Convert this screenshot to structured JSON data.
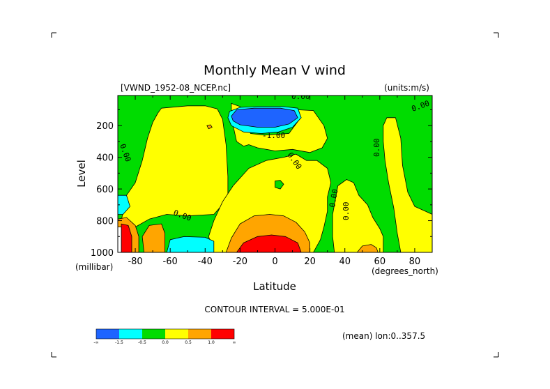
{
  "chart_data": {
    "type": "heatmap",
    "title": "Monthly Mean V wind",
    "dataset": "[VWND_1952-08_NCEP.nc]",
    "units": "(units:m/s)",
    "xlabel": "Latitude",
    "ylabel": "Level",
    "x_unit_label": "(degrees_north)",
    "y_unit_label": "(millibar)",
    "xlim": [
      -90,
      90
    ],
    "ylim": [
      1000,
      10
    ],
    "xticks": [
      "-80",
      "-60",
      "-40",
      "-20",
      "0",
      "20",
      "40",
      "60",
      "80"
    ],
    "xtick_values": [
      -80,
      -60,
      -40,
      -20,
      0,
      20,
      40,
      60,
      80
    ],
    "yticks": [
      "200",
      "400",
      "600",
      "800",
      "1000"
    ],
    "ytick_values": [
      200,
      400,
      600,
      800,
      1000
    ],
    "contour_interval_text": "CONTOUR INTERVAL = 5.000E-01",
    "mean_text": "(mean) lon:0..357.5",
    "contour_labels": [
      "0.00",
      "0.00",
      "0.00",
      "0.00",
      "0.00",
      "0.00",
      "0.00",
      "0.00",
      "-1.00"
    ],
    "colorbar": {
      "colors": [
        "#1e64ff",
        "#00ffff",
        "#00dc00",
        "#ffff00",
        "#ffa500",
        "#ff0000"
      ],
      "labels": [
        "-∞",
        "-1.5",
        "-0.5",
        "0.0",
        "0.5",
        "1.0",
        "∞"
      ]
    },
    "field": {
      "background_color": "#00dc00",
      "regions": [
        {
          "name": "yellow-left",
          "color": "#ffff00",
          "pts": [
            [
              -88,
              800
            ],
            [
              -85,
              640
            ],
            [
              -80,
              560
            ],
            [
              -76,
              420
            ],
            [
              -73,
              280
            ],
            [
              -70,
              180
            ],
            [
              -67,
              120
            ],
            [
              -65,
              90
            ],
            [
              -50,
              75
            ],
            [
              -40,
              75
            ],
            [
              -33,
              95
            ],
            [
              -30,
              160
            ],
            [
              -28,
              320
            ],
            [
              -27,
              520
            ],
            [
              -27,
              660
            ],
            [
              -35,
              760
            ],
            [
              -50,
              770
            ],
            [
              -62,
              760
            ],
            [
              -72,
              790
            ],
            [
              -80,
              840
            ],
            [
              -86,
              840
            ]
          ]
        },
        {
          "name": "yellow-upper-mid",
          "color": "#ffff00",
          "pts": [
            [
              -25,
              60
            ],
            [
              -20,
              80
            ],
            [
              -18,
              160
            ],
            [
              -14,
              250
            ],
            [
              -6,
              260
            ],
            [
              8,
              250
            ],
            [
              14,
              160
            ],
            [
              13,
              100
            ],
            [
              22,
              105
            ],
            [
              28,
              200
            ],
            [
              30,
              280
            ],
            [
              27,
              340
            ],
            [
              20,
              370
            ],
            [
              10,
              350
            ],
            [
              0,
              360
            ],
            [
              -10,
              340
            ],
            [
              -15,
              320
            ],
            [
              -18,
              330
            ],
            [
              -22,
              300
            ],
            [
              -24,
              200
            ],
            [
              -25,
              120
            ]
          ]
        },
        {
          "name": "yellow-lower-mid",
          "color": "#ffff00",
          "pts": [
            [
              -30,
              680
            ],
            [
              -24,
              580
            ],
            [
              -15,
              470
            ],
            [
              -5,
              420
            ],
            [
              5,
              400
            ],
            [
              12,
              380
            ],
            [
              18,
              420
            ],
            [
              24,
              420
            ],
            [
              30,
              470
            ],
            [
              32,
              560
            ],
            [
              30,
              650
            ],
            [
              30,
              740
            ],
            [
              28,
              840
            ],
            [
              26,
              920
            ],
            [
              22,
              1000
            ],
            [
              -35,
              1000
            ],
            [
              -38,
              900
            ],
            [
              -35,
              800
            ]
          ]
        },
        {
          "name": "yellow-right-a",
          "color": "#ffff00",
          "pts": [
            [
              36,
              580
            ],
            [
              41,
              540
            ],
            [
              45,
              560
            ],
            [
              48,
              640
            ],
            [
              53,
              700
            ],
            [
              56,
              780
            ],
            [
              60,
              850
            ],
            [
              62,
              900
            ],
            [
              62,
              1000
            ],
            [
              34,
              1000
            ],
            [
              33,
              900
            ],
            [
              33,
              760
            ]
          ]
        },
        {
          "name": "yellow-right-b",
          "color": "#ffff00",
          "pts": [
            [
              64,
              150
            ],
            [
              69,
              150
            ],
            [
              72,
              280
            ],
            [
              73,
              450
            ],
            [
              76,
              620
            ],
            [
              80,
              710
            ],
            [
              86,
              740
            ],
            [
              90,
              760
            ],
            [
              90,
              1000
            ],
            [
              72,
              1000
            ],
            [
              70,
              880
            ],
            [
              68,
              720
            ],
            [
              65,
              560
            ],
            [
              63,
              420
            ],
            [
              62,
              300
            ],
            [
              62,
              200
            ]
          ]
        },
        {
          "name": "orange-bottom-mid",
          "color": "#ffa500",
          "pts": [
            [
              -28,
              1000
            ],
            [
              -25,
              910
            ],
            [
              -20,
              820
            ],
            [
              -12,
              770
            ],
            [
              -3,
              760
            ],
            [
              5,
              770
            ],
            [
              12,
              810
            ],
            [
              17,
              870
            ],
            [
              20,
              940
            ],
            [
              20,
              1000
            ]
          ]
        },
        {
          "name": "red-bottom-mid",
          "color": "#ff0000",
          "pts": [
            [
              -22,
              1000
            ],
            [
              -18,
              940
            ],
            [
              -10,
              900
            ],
            [
              -2,
              890
            ],
            [
              6,
              900
            ],
            [
              13,
              940
            ],
            [
              15,
              1000
            ]
          ]
        },
        {
          "name": "blue-upper-mid",
          "color": "#00ffff",
          "pts": [
            [
              -27,
              150
            ],
            [
              -26,
              110
            ],
            [
              -20,
              85
            ],
            [
              -10,
              80
            ],
            [
              5,
              80
            ],
            [
              13,
              90
            ],
            [
              15,
              150
            ],
            [
              10,
              210
            ],
            [
              2,
              240
            ],
            [
              -8,
              250
            ],
            [
              -18,
              240
            ],
            [
              -25,
              200
            ]
          ]
        },
        {
          "name": "deepblue-upper-mid",
          "color": "#1e64ff",
          "pts": [
            [
              -25,
              140
            ],
            [
              -22,
              100
            ],
            [
              -12,
              90
            ],
            [
              3,
              90
            ],
            [
              11,
              105
            ],
            [
              13,
              150
            ],
            [
              8,
              190
            ],
            [
              0,
              210
            ],
            [
              -10,
              210
            ],
            [
              -20,
              195
            ],
            [
              -24,
              170
            ]
          ]
        },
        {
          "name": "orange-left",
          "color": "#ffa500",
          "pts": [
            [
              -75,
              1000
            ],
            [
              -76,
              900
            ],
            [
              -72,
              830
            ],
            [
              -65,
              820
            ],
            [
              -63,
              880
            ],
            [
              -63,
              960
            ],
            [
              -63,
              1000
            ]
          ]
        },
        {
          "name": "cyan-left-bottom",
          "color": "#00ffff",
          "pts": [
            [
              -62,
              1000
            ],
            [
              -60,
              920
            ],
            [
              -52,
              900
            ],
            [
              -40,
              905
            ],
            [
              -35,
              930
            ],
            [
              -35,
              1000
            ]
          ]
        },
        {
          "name": "cyan-left-edge",
          "color": "#00ffff",
          "pts": [
            [
              -90,
              640
            ],
            [
              -85,
              640
            ],
            [
              -83,
              710
            ],
            [
              -87,
              760
            ],
            [
              -90,
              760
            ]
          ]
        },
        {
          "name": "orange-far-left",
          "color": "#ffa500",
          "pts": [
            [
              -90,
              790
            ],
            [
              -85,
              780
            ],
            [
              -80,
              830
            ],
            [
              -78,
              900
            ],
            [
              -78,
              1000
            ],
            [
              -90,
              1000
            ]
          ]
        },
        {
          "name": "red-far-left",
          "color": "#ff0000",
          "pts": [
            [
              -88,
              820
            ],
            [
              -84,
              830
            ],
            [
              -82,
              900
            ],
            [
              -82,
              1000
            ],
            [
              -88,
              1000
            ]
          ]
        },
        {
          "name": "orange-right-bottom",
          "color": "#ffa500",
          "pts": [
            [
              47,
              1000
            ],
            [
              50,
              960
            ],
            [
              55,
              950
            ],
            [
              58,
              970
            ],
            [
              59,
              1000
            ]
          ]
        },
        {
          "name": "orange-speck",
          "color": "#ffa500",
          "pts": [
            [
              -39,
              200
            ],
            [
              -37,
              195
            ],
            [
              -36,
              210
            ],
            [
              -38,
              220
            ]
          ]
        },
        {
          "name": "green-speck-mid",
          "color": "#00dc00",
          "pts": [
            [
              0,
              550
            ],
            [
              3,
              545
            ],
            [
              5,
              570
            ],
            [
              3,
              600
            ],
            [
              0,
              590
            ]
          ]
        },
        {
          "name": "white-left-edge",
          "color": "#ffffff",
          "pts": [
            [
              -90,
              840
            ],
            [
              -88,
              840
            ],
            [
              -88,
              1000
            ],
            [
              -90,
              1000
            ]
          ]
        }
      ]
    }
  }
}
